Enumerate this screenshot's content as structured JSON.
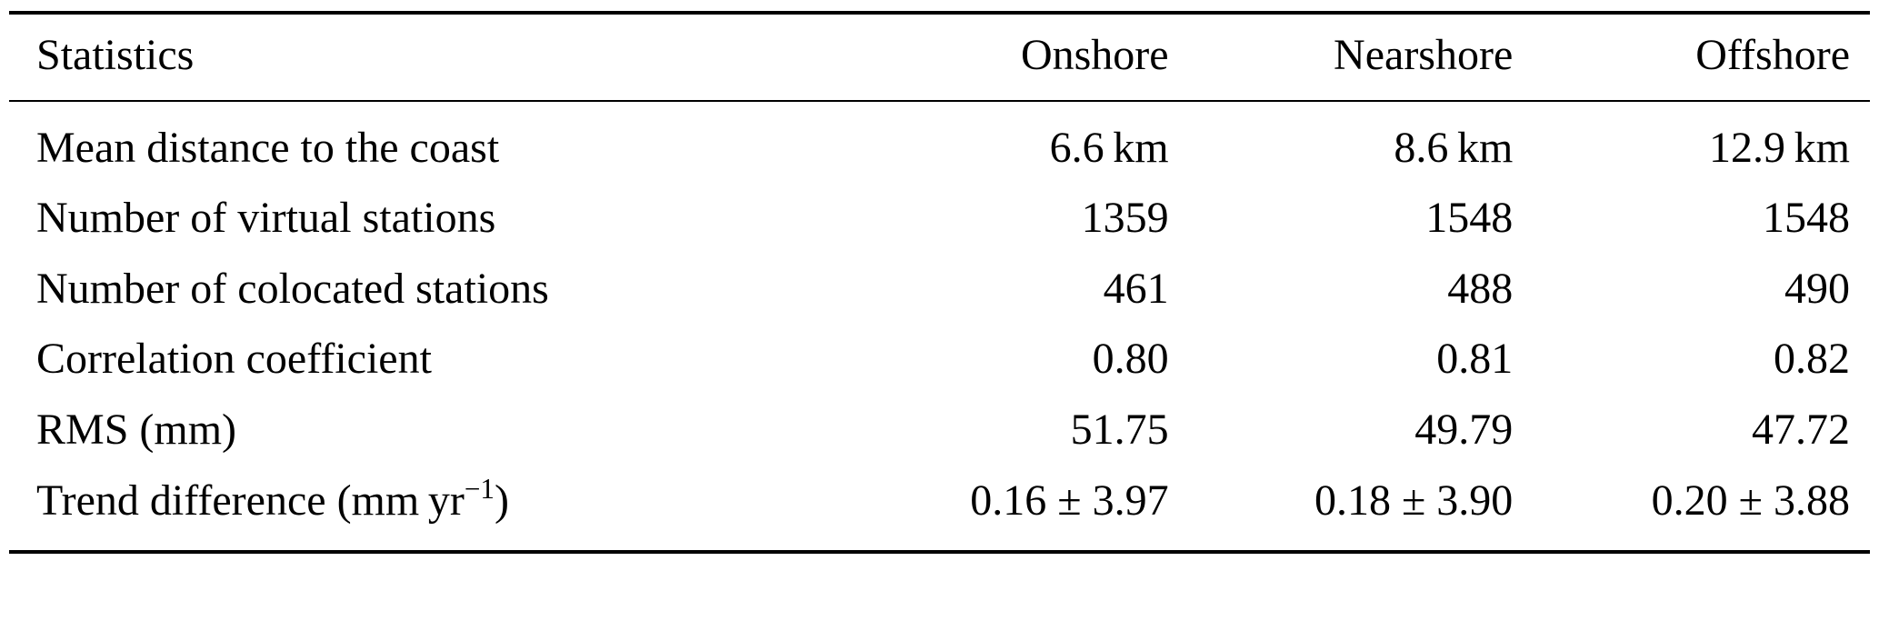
{
  "table": {
    "headers": {
      "col0": "Statistics",
      "col1": "Onshore",
      "col2": "Nearshore",
      "col3": "Offshore"
    },
    "rows": [
      {
        "label": "Mean distance to the coast",
        "values": [
          "6.6 km",
          "8.6 km",
          "12.9 km"
        ]
      },
      {
        "label": "Number of virtual stations",
        "values": [
          "1359",
          "1548",
          "1548"
        ]
      },
      {
        "label": "Number of colocated stations",
        "values": [
          "461",
          "488",
          "490"
        ]
      },
      {
        "label": "Correlation coefficient",
        "values": [
          "0.80",
          "0.81",
          "0.82"
        ]
      },
      {
        "label": "RMS (mm)",
        "values": [
          "51.75",
          "49.79",
          "47.72"
        ]
      },
      {
        "label_prefix": "Trend difference (mm yr",
        "label_sup": "−1",
        "label_suffix": ")",
        "values": [
          "0.16 ± 3.97",
          "0.18 ± 3.90",
          "0.20 ± 3.88"
        ]
      }
    ]
  }
}
